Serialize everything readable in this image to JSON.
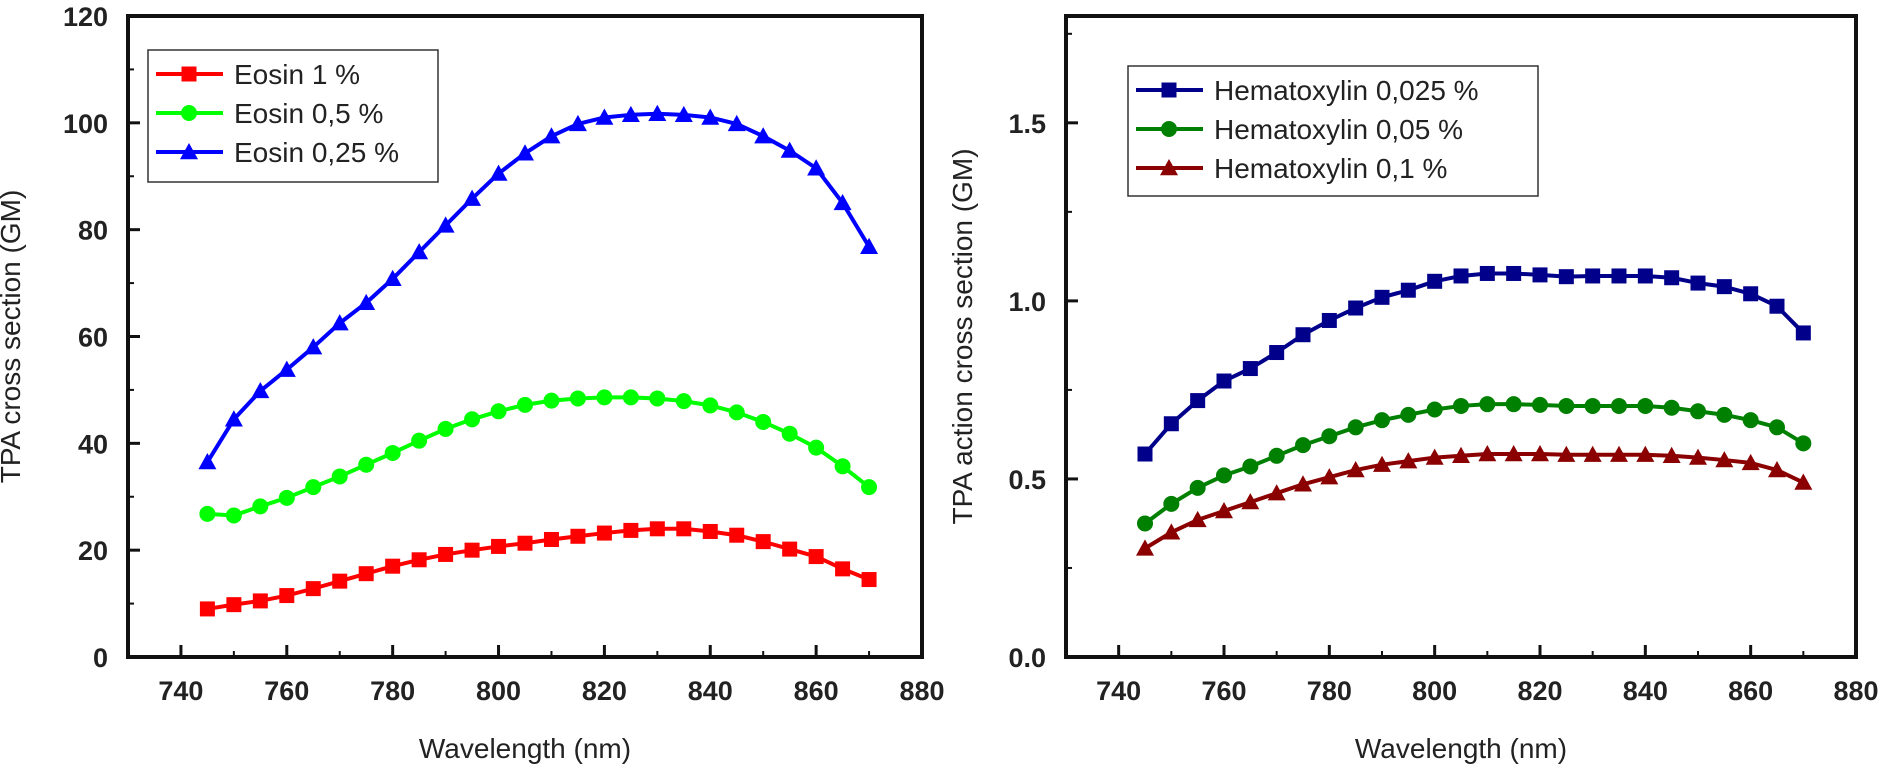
{
  "chart_data": [
    {
      "type": "line",
      "xlabel": "Wavelength (nm)",
      "ylabel": "TPA cross section (GM)",
      "xlim": [
        730,
        880
      ],
      "ylim": [
        0,
        120
      ],
      "xticks": [
        740,
        760,
        780,
        800,
        820,
        840,
        860,
        880
      ],
      "yticks": [
        0,
        20,
        40,
        60,
        80,
        100,
        120
      ],
      "x": [
        745,
        750,
        755,
        760,
        765,
        770,
        775,
        780,
        785,
        790,
        795,
        800,
        805,
        810,
        815,
        820,
        825,
        830,
        835,
        840,
        845,
        850,
        855,
        860,
        865,
        870
      ],
      "legend_position": "top-left",
      "series": [
        {
          "name": "Eosin 1 %",
          "color": "#ff0000",
          "marker": "square",
          "values": [
            9,
            9.8,
            10.5,
            11.5,
            12.8,
            14.2,
            15.6,
            17,
            18.2,
            19.2,
            20,
            20.7,
            21.3,
            22,
            22.6,
            23.2,
            23.7,
            24,
            24,
            23.5,
            22.8,
            21.6,
            20.2,
            18.8,
            16.5,
            14.5
          ]
        },
        {
          "name": "Eosin 0,5 %",
          "color": "#00ff00",
          "marker": "circle",
          "values": [
            26.8,
            26.5,
            28.2,
            29.8,
            31.8,
            33.8,
            36,
            38.2,
            40.5,
            42.7,
            44.5,
            46,
            47.2,
            48,
            48.4,
            48.6,
            48.6,
            48.4,
            47.9,
            47.1,
            45.8,
            44,
            41.8,
            39.2,
            35.7,
            31.8
          ]
        },
        {
          "name": "Eosin 0,25 %",
          "color": "#0000ff",
          "marker": "triangle",
          "values": [
            36.5,
            44.5,
            49.8,
            53.8,
            58,
            62.5,
            66.3,
            70.8,
            75.8,
            80.8,
            85.8,
            90.5,
            94.3,
            97.5,
            99.8,
            101,
            101.5,
            101.7,
            101.5,
            101,
            99.8,
            97.5,
            94.8,
            91.5,
            85,
            76.8
          ]
        }
      ]
    },
    {
      "type": "line",
      "xlabel": "Wavelength (nm)",
      "ylabel": "TPA action cross section (GM)",
      "xlim": [
        730,
        880
      ],
      "ylim": [
        0,
        1.8
      ],
      "xticks": [
        740,
        760,
        780,
        800,
        820,
        840,
        860,
        880
      ],
      "yticks": [
        "0.0",
        "0.5",
        "1.0",
        "1.5"
      ],
      "x": [
        745,
        750,
        755,
        760,
        765,
        770,
        775,
        780,
        785,
        790,
        795,
        800,
        805,
        810,
        815,
        820,
        825,
        830,
        835,
        840,
        845,
        850,
        855,
        860,
        865,
        870
      ],
      "legend_position": "top-left",
      "series": [
        {
          "name": "Hematoxylin 0,025 %",
          "color": "#00008b",
          "marker": "square",
          "values": [
            0.57,
            0.655,
            0.72,
            0.775,
            0.81,
            0.855,
            0.905,
            0.945,
            0.98,
            1.01,
            1.03,
            1.055,
            1.07,
            1.077,
            1.077,
            1.073,
            1.068,
            1.07,
            1.07,
            1.07,
            1.065,
            1.05,
            1.04,
            1.02,
            0.985,
            0.91
          ]
        },
        {
          "name": "Hematoxylin  0,05 %",
          "color": "#008000",
          "marker": "circle",
          "values": [
            0.375,
            0.43,
            0.475,
            0.51,
            0.535,
            0.565,
            0.595,
            0.62,
            0.645,
            0.665,
            0.68,
            0.695,
            0.705,
            0.71,
            0.71,
            0.708,
            0.705,
            0.705,
            0.705,
            0.705,
            0.7,
            0.69,
            0.68,
            0.665,
            0.645,
            0.6
          ]
        },
        {
          "name": "Hematoxylin  0,1 %",
          "color": "#8b0000",
          "marker": "triangle",
          "values": [
            0.305,
            0.35,
            0.385,
            0.41,
            0.435,
            0.46,
            0.485,
            0.505,
            0.525,
            0.54,
            0.55,
            0.56,
            0.565,
            0.57,
            0.57,
            0.57,
            0.568,
            0.568,
            0.568,
            0.568,
            0.565,
            0.56,
            0.553,
            0.545,
            0.525,
            0.49
          ]
        }
      ]
    }
  ]
}
